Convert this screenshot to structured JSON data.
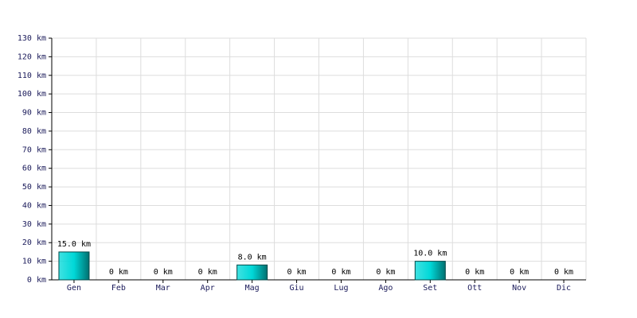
{
  "chart_data": {
    "type": "bar",
    "categories": [
      "Gen",
      "Feb",
      "Mar",
      "Apr",
      "Mag",
      "Giu",
      "Lug",
      "Ago",
      "Set",
      "Ott",
      "Nov",
      "Dic"
    ],
    "values": [
      15,
      0,
      0,
      0,
      8,
      0,
      0,
      0,
      10,
      0,
      0,
      0
    ],
    "value_labels": [
      "15.0 km",
      "0 km",
      "0 km",
      "0 km",
      "8.0 km",
      "0 km",
      "0 km",
      "0 km",
      "10.0 km",
      "0 km",
      "0 km",
      "0 km"
    ],
    "color": "#00d8d8",
    "ylim": [
      0,
      130
    ],
    "yticks": [
      {
        "value": 0,
        "label": "0 km"
      },
      {
        "value": 10,
        "label": "10 km"
      },
      {
        "value": 20,
        "label": "20 km"
      },
      {
        "value": 30,
        "label": "30 km"
      },
      {
        "value": 40,
        "label": "40 km"
      },
      {
        "value": 50,
        "label": "50 km"
      },
      {
        "value": 60,
        "label": "60 km"
      },
      {
        "value": 70,
        "label": "70 km"
      },
      {
        "value": 80,
        "label": "80 km"
      },
      {
        "value": 90,
        "label": "90 km"
      },
      {
        "value": 100,
        "label": "100 km"
      },
      {
        "value": 110,
        "label": "110 km"
      },
      {
        "value": 120,
        "label": "120 km"
      },
      {
        "value": 130,
        "label": "130 km"
      }
    ],
    "grid": true
  }
}
